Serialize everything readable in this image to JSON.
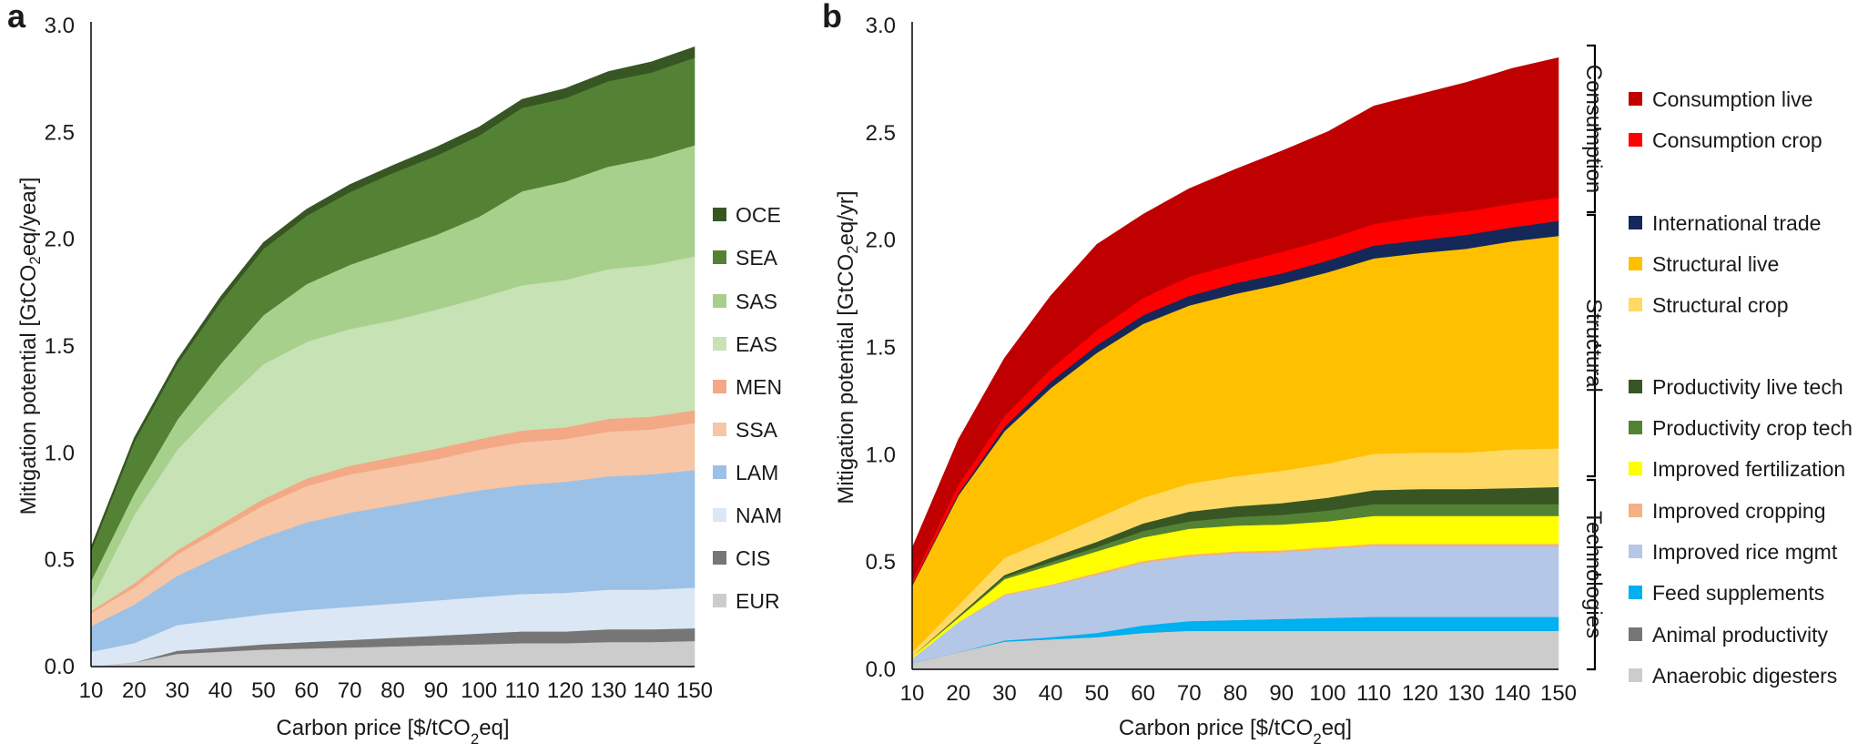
{
  "chart_data": [
    {
      "type": "area",
      "panel_label": "a",
      "stacked": true,
      "x": [
        10,
        20,
        30,
        40,
        50,
        60,
        70,
        80,
        90,
        100,
        110,
        120,
        130,
        140,
        150
      ],
      "xlabel": "Carbon price [$/tCO2eq]",
      "ylabel": "Mitigation potential [GtCO2eq/year]",
      "ylim": [
        0,
        3.0
      ],
      "yticks": [
        "0.0",
        "0.5",
        "1.0",
        "1.5",
        "2.0",
        "2.5",
        "3.0"
      ],
      "legend_position": "right",
      "series": [
        {
          "name": "EUR",
          "color": "#cccccc",
          "values": [
            0.0,
            0.02,
            0.06,
            0.07,
            0.08,
            0.085,
            0.09,
            0.095,
            0.1,
            0.105,
            0.11,
            0.11,
            0.115,
            0.115,
            0.12
          ]
        },
        {
          "name": "CIS",
          "color": "#767676",
          "values": [
            0.0,
            0.0,
            0.015,
            0.02,
            0.025,
            0.03,
            0.035,
            0.04,
            0.045,
            0.05,
            0.055,
            0.055,
            0.06,
            0.06,
            0.06
          ]
        },
        {
          "name": "NAM",
          "color": "#dce7f5",
          "values": [
            0.07,
            0.09,
            0.12,
            0.13,
            0.14,
            0.15,
            0.155,
            0.16,
            0.165,
            0.17,
            0.175,
            0.18,
            0.185,
            0.185,
            0.19
          ]
        },
        {
          "name": "LAM",
          "color": "#9cc1e6",
          "values": [
            0.12,
            0.18,
            0.23,
            0.3,
            0.36,
            0.41,
            0.44,
            0.46,
            0.48,
            0.5,
            0.51,
            0.52,
            0.53,
            0.54,
            0.55
          ]
        },
        {
          "name": "SSA",
          "color": "#f6c6a6",
          "values": [
            0.06,
            0.08,
            0.1,
            0.12,
            0.15,
            0.17,
            0.18,
            0.18,
            0.18,
            0.19,
            0.2,
            0.2,
            0.21,
            0.21,
            0.22
          ]
        },
        {
          "name": "MEN",
          "color": "#f3a985",
          "values": [
            0.01,
            0.02,
            0.02,
            0.025,
            0.03,
            0.035,
            0.04,
            0.045,
            0.05,
            0.05,
            0.055,
            0.055,
            0.06,
            0.06,
            0.06
          ]
        },
        {
          "name": "EAS",
          "color": "#c7e2b4",
          "values": [
            0.05,
            0.32,
            0.47,
            0.56,
            0.63,
            0.64,
            0.64,
            0.64,
            0.65,
            0.66,
            0.68,
            0.69,
            0.7,
            0.71,
            0.72
          ]
        },
        {
          "name": "SAS",
          "color": "#a8d08d",
          "values": [
            0.09,
            0.1,
            0.14,
            0.19,
            0.23,
            0.27,
            0.3,
            0.33,
            0.35,
            0.38,
            0.44,
            0.46,
            0.48,
            0.5,
            0.52
          ]
        },
        {
          "name": "SEA",
          "color": "#548235",
          "values": [
            0.14,
            0.24,
            0.26,
            0.29,
            0.31,
            0.32,
            0.34,
            0.36,
            0.37,
            0.38,
            0.39,
            0.39,
            0.4,
            0.4,
            0.41
          ]
        },
        {
          "name": "OCE",
          "color": "#375623",
          "values": [
            0.02,
            0.02,
            0.02,
            0.025,
            0.03,
            0.03,
            0.035,
            0.035,
            0.04,
            0.04,
            0.04,
            0.045,
            0.045,
            0.05,
            0.05
          ]
        }
      ]
    },
    {
      "type": "area",
      "panel_label": "b",
      "stacked": true,
      "x": [
        10,
        20,
        30,
        40,
        50,
        60,
        70,
        80,
        90,
        100,
        110,
        120,
        130,
        140,
        150
      ],
      "xlabel": "Carbon price [$/tCO2eq]",
      "ylabel": "Mitigation potential [GtCO2eq/yr]",
      "ylim": [
        0,
        3.0
      ],
      "yticks": [
        "0.0",
        "0.5",
        "1.0",
        "1.5",
        "2.0",
        "2.5",
        "3.0"
      ],
      "legend_position": "right",
      "groups": [
        "Consumption",
        "Structural",
        "Technologies"
      ],
      "series": [
        {
          "name": "Anaerobic digesters",
          "color": "#cccccc",
          "values": [
            0.03,
            0.08,
            0.13,
            0.14,
            0.15,
            0.17,
            0.18,
            0.18,
            0.18,
            0.18,
            0.18,
            0.18,
            0.18,
            0.18,
            0.18
          ]
        },
        {
          "name": "Animal productivity",
          "color": "#767676",
          "values": [
            0.0,
            0.0,
            0.0,
            0.0,
            0.0,
            0.0,
            0.0,
            0.0,
            0.0,
            0.0,
            0.0,
            0.0,
            0.0,
            0.0,
            0.0
          ]
        },
        {
          "name": "Feed supplements",
          "color": "#00b0f0",
          "values": [
            0.0,
            0.0,
            0.005,
            0.01,
            0.02,
            0.035,
            0.045,
            0.05,
            0.055,
            0.06,
            0.065,
            0.065,
            0.065,
            0.065,
            0.065
          ]
        },
        {
          "name": "Improved rice mgmt",
          "color": "#b4c7e7",
          "values": [
            0.02,
            0.14,
            0.21,
            0.24,
            0.27,
            0.29,
            0.3,
            0.31,
            0.31,
            0.32,
            0.33,
            0.33,
            0.33,
            0.33,
            0.33
          ]
        },
        {
          "name": "Improved cropping",
          "color": "#f4b183",
          "values": [
            0.0,
            0.0,
            0.005,
            0.005,
            0.01,
            0.01,
            0.01,
            0.01,
            0.01,
            0.01,
            0.01,
            0.01,
            0.01,
            0.01,
            0.01
          ]
        },
        {
          "name": "Improved fertilization",
          "color": "#ffff00",
          "values": [
            0.01,
            0.02,
            0.07,
            0.09,
            0.1,
            0.11,
            0.12,
            0.12,
            0.12,
            0.12,
            0.13,
            0.13,
            0.13,
            0.13,
            0.13
          ]
        },
        {
          "name": "Productivity crop tech",
          "color": "#548235",
          "values": [
            0.0,
            0.005,
            0.01,
            0.015,
            0.02,
            0.03,
            0.035,
            0.04,
            0.045,
            0.05,
            0.055,
            0.055,
            0.055,
            0.055,
            0.055
          ]
        },
        {
          "name": "Productivity live tech",
          "color": "#375623",
          "values": [
            0.0,
            0.005,
            0.01,
            0.02,
            0.025,
            0.035,
            0.045,
            0.05,
            0.055,
            0.06,
            0.065,
            0.07,
            0.07,
            0.075,
            0.08
          ]
        },
        {
          "name": "Structural crop",
          "color": "#ffd966",
          "values": [
            0.02,
            0.05,
            0.08,
            0.09,
            0.11,
            0.12,
            0.13,
            0.14,
            0.15,
            0.16,
            0.17,
            0.17,
            0.17,
            0.18,
            0.18
          ]
        },
        {
          "name": "Structural live",
          "color": "#ffc000",
          "values": [
            0.31,
            0.51,
            0.59,
            0.7,
            0.77,
            0.81,
            0.83,
            0.85,
            0.87,
            0.89,
            0.91,
            0.93,
            0.95,
            0.97,
            0.99
          ]
        },
        {
          "name": "International trade",
          "color": "#14295a",
          "values": [
            0.005,
            0.01,
            0.02,
            0.03,
            0.035,
            0.04,
            0.045,
            0.05,
            0.05,
            0.055,
            0.06,
            0.06,
            0.065,
            0.065,
            0.07
          ]
        },
        {
          "name": "Consumption crop",
          "color": "#ff0000",
          "values": [
            0.02,
            0.04,
            0.05,
            0.06,
            0.07,
            0.08,
            0.09,
            0.09,
            0.1,
            0.1,
            0.1,
            0.11,
            0.11,
            0.11,
            0.11
          ]
        },
        {
          "name": "Consumption live",
          "color": "#c00000",
          "values": [
            0.15,
            0.21,
            0.27,
            0.34,
            0.4,
            0.39,
            0.41,
            0.44,
            0.47,
            0.5,
            0.55,
            0.57,
            0.6,
            0.63,
            0.65
          ]
        }
      ]
    }
  ]
}
